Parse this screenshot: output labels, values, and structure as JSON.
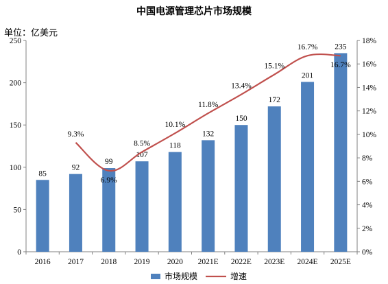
{
  "chart_data": {
    "type": "bar",
    "title": "中国电源管理芯片市场规模",
    "unit_label": "单位：亿美元",
    "categories": [
      "2016",
      "2017",
      "2018",
      "2019",
      "2020",
      "2021E",
      "2022E",
      "2023E",
      "2024E",
      "2025E"
    ],
    "series": [
      {
        "name": "市场规模",
        "type": "bar",
        "axis": "left",
        "color": "#4f81bd",
        "values": [
          85,
          92,
          99,
          107,
          118,
          132,
          150,
          172,
          201,
          235
        ],
        "labels": [
          "85",
          "92",
          "99",
          "107",
          "118",
          "132",
          "150",
          "172",
          "201",
          "235"
        ]
      },
      {
        "name": "增速",
        "type": "line",
        "axis": "right",
        "color": "#c0504d",
        "values": [
          null,
          9.3,
          6.9,
          8.5,
          10.1,
          11.8,
          13.4,
          15.1,
          16.7,
          16.7
        ],
        "labels": [
          "",
          "9.3%",
          "6.9%",
          "8.5%",
          "10.1%",
          "11.8%",
          "13.4%",
          "15.1%",
          "16.7%",
          "16.7%"
        ]
      }
    ],
    "ylim": [
      0,
      250
    ],
    "y_ticks": [
      "0",
      "50",
      "100",
      "150",
      "200",
      "250"
    ],
    "y2lim": [
      0,
      18
    ],
    "y2_ticks": [
      "0%",
      "2%",
      "4%",
      "6%",
      "8%",
      "10%",
      "12%",
      "14%",
      "16%",
      "18%"
    ],
    "grid": false,
    "legend_position": "bottom"
  }
}
